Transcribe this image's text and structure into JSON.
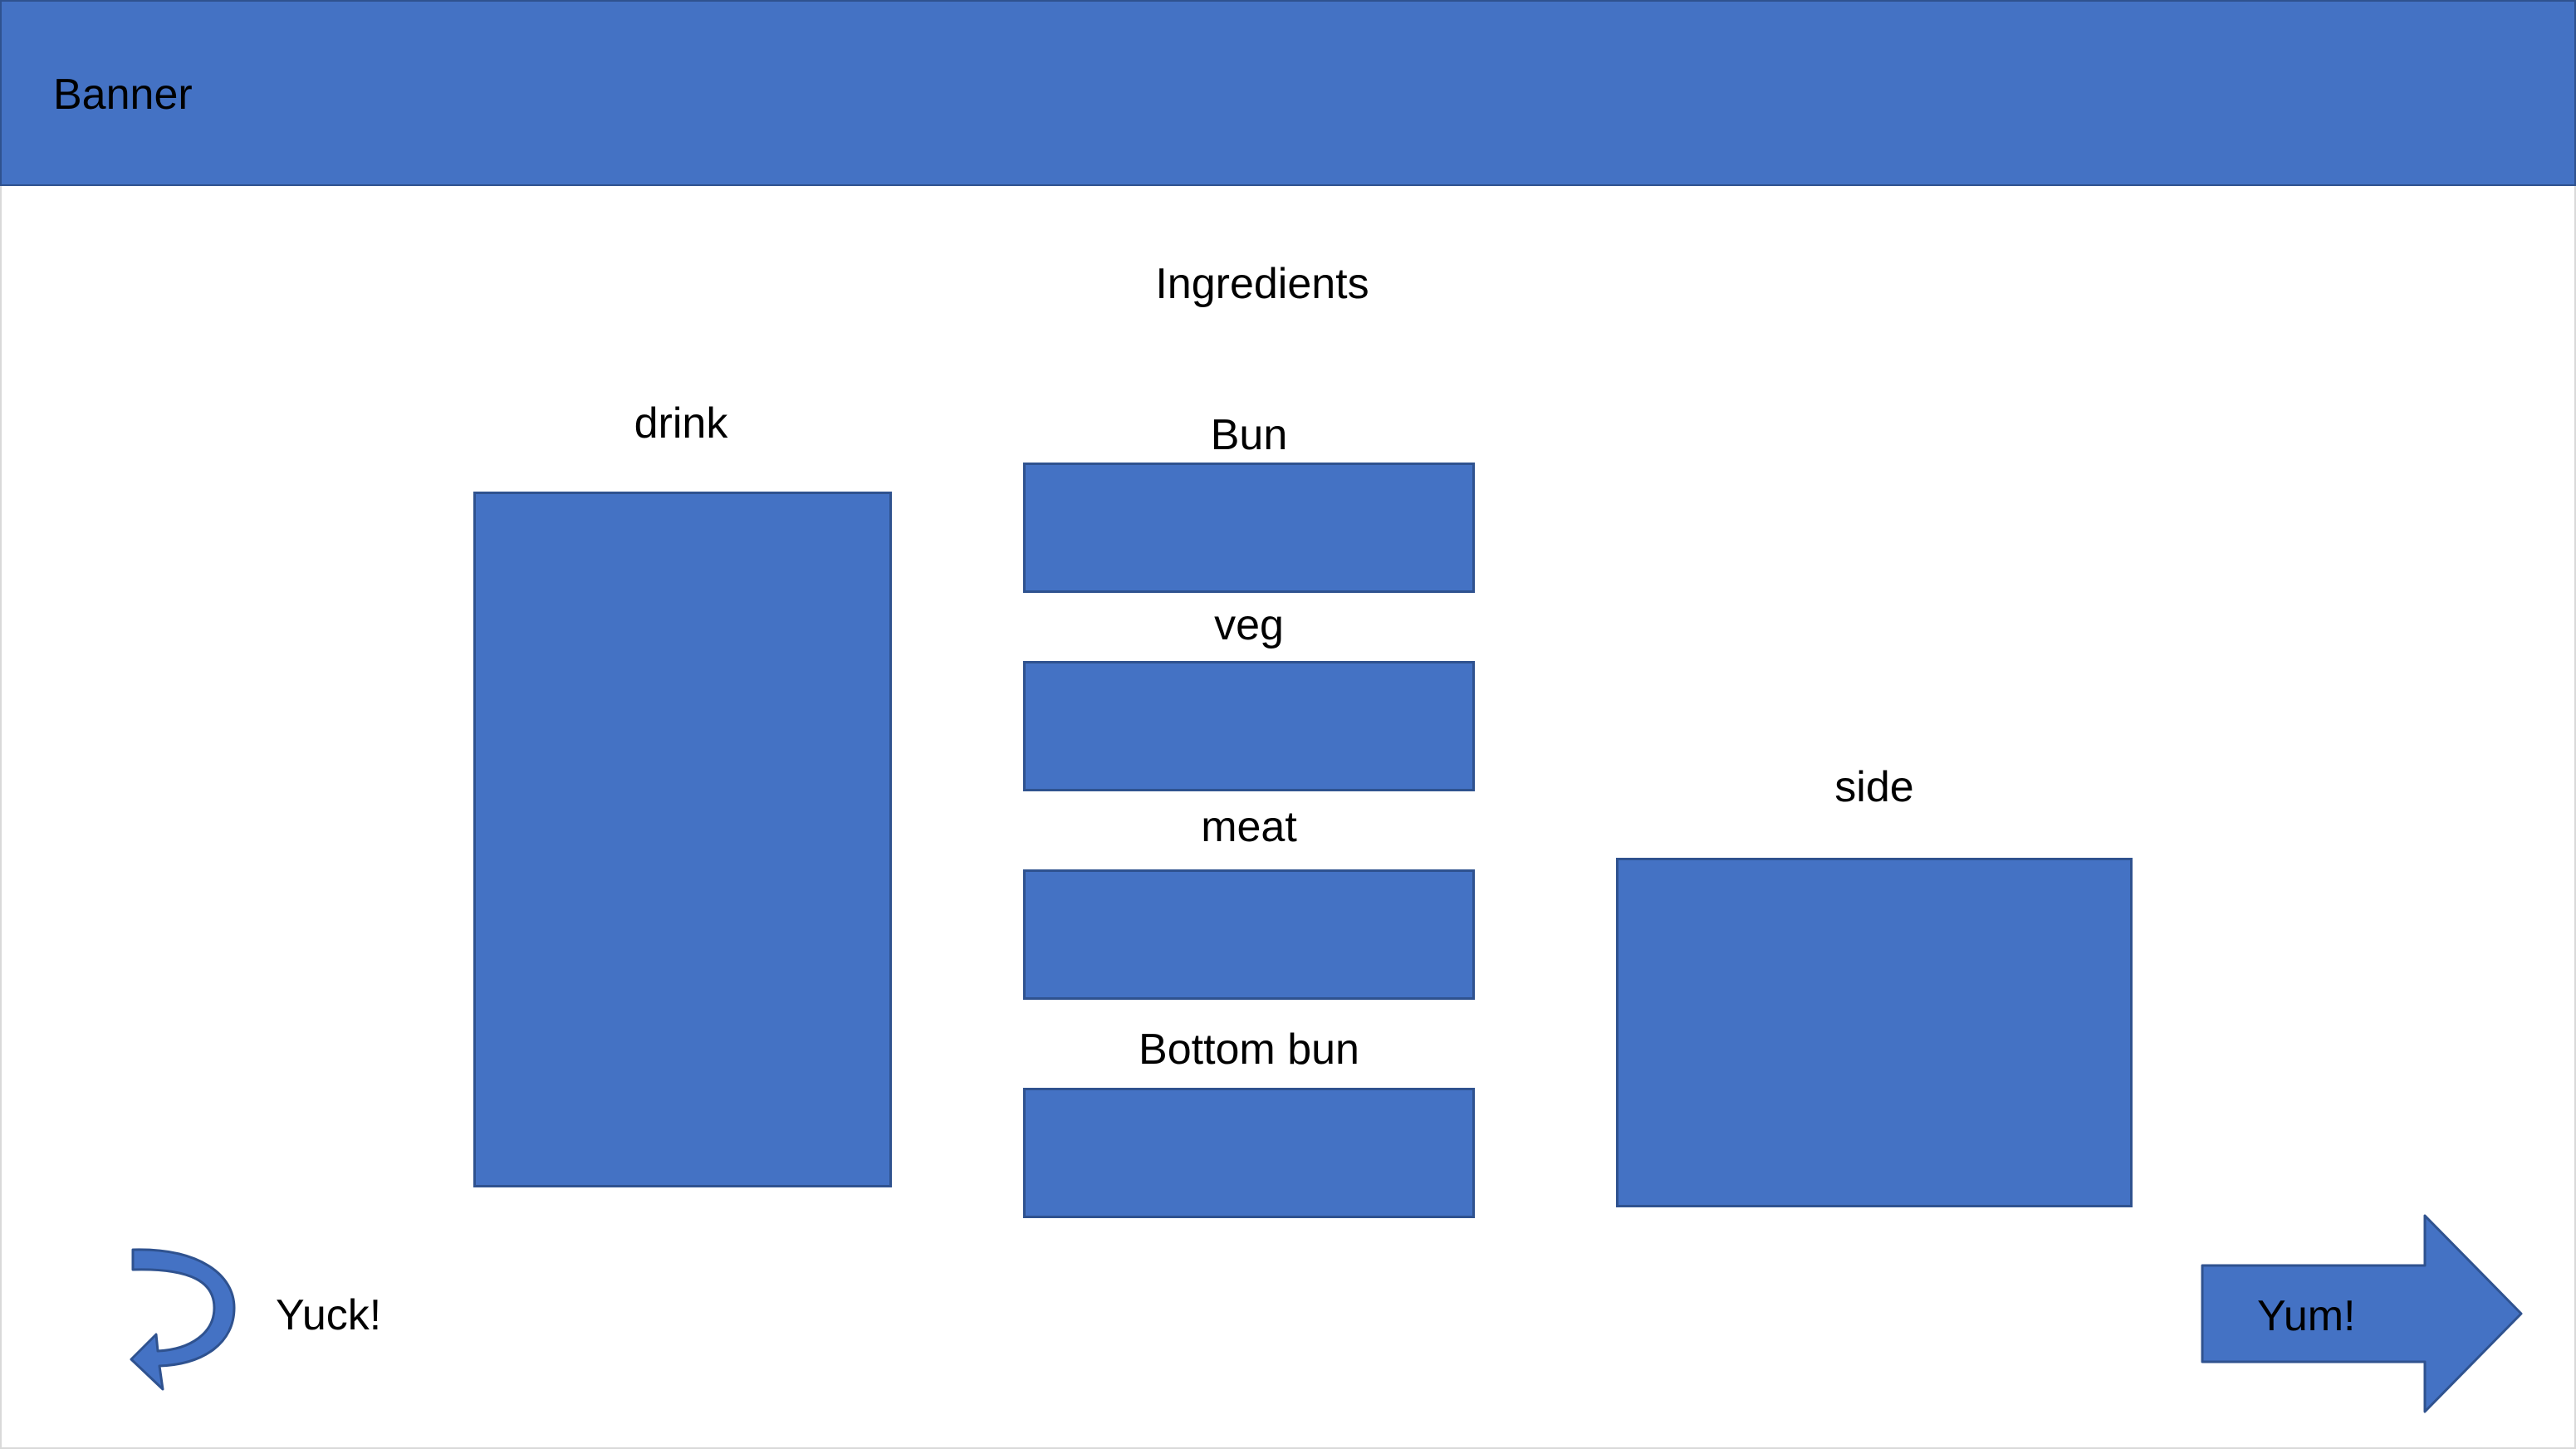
{
  "banner": {
    "label": "Banner"
  },
  "main": {
    "title": "Ingredients",
    "drink": {
      "label": "drink"
    },
    "burger": {
      "bun_label": "Bun",
      "veg_label": "veg",
      "meat_label": "meat",
      "bottom_bun_label": "Bottom bun"
    },
    "side": {
      "label": "side"
    }
  },
  "actions": {
    "yuck_label": "Yuck!",
    "yum_label": "Yum!"
  },
  "icons": {
    "yuck": "curved-u-turn-arrow-icon",
    "yum": "right-arrow-icon"
  },
  "colors": {
    "accent": "#4472c4",
    "accent_border": "#2f528f"
  }
}
